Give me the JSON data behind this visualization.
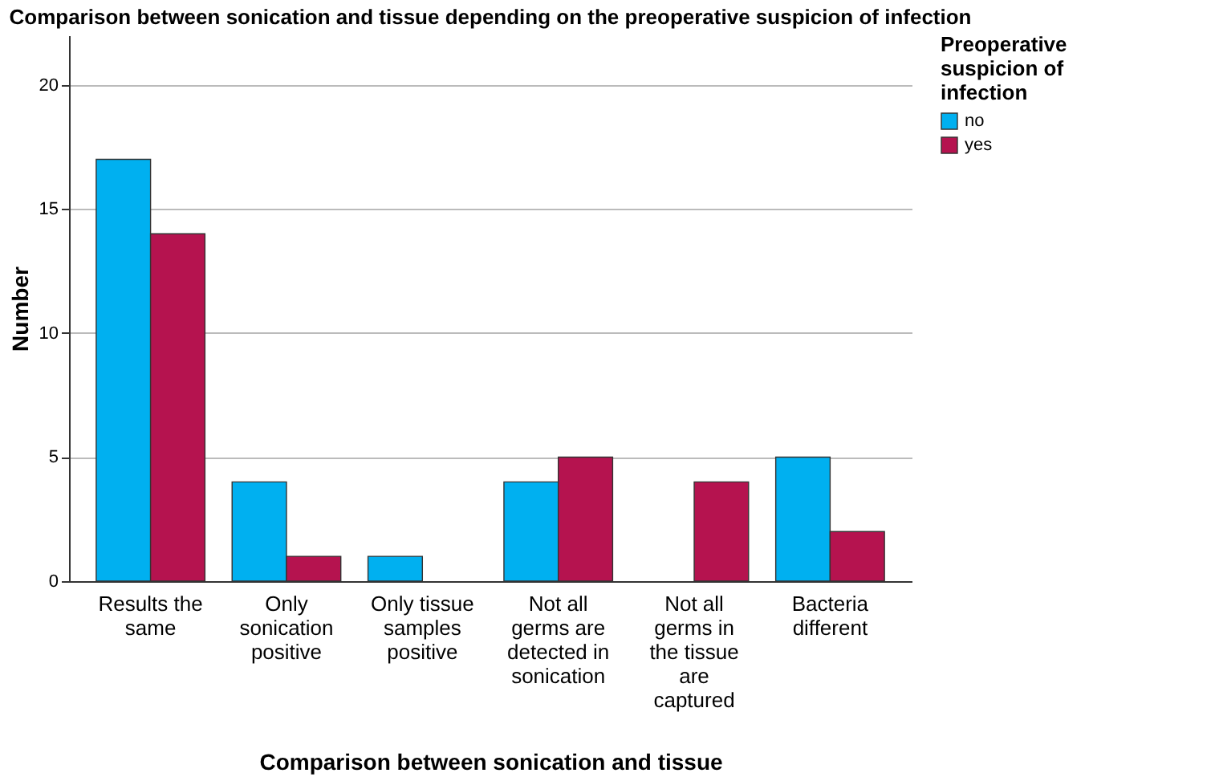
{
  "chart_data": {
    "type": "bar",
    "title": "Comparison between sonication and tissue depending on the preoperative suspicion of infection",
    "xlabel": "Comparison between sonication and tissue",
    "ylabel": "Number",
    "legend_title": "Preoperative suspicion of infection",
    "categories": [
      "Results the same",
      "Only sonication positive",
      "Only tissue samples positive",
      "Not all germs are detected in sonication",
      "Not all germs in the tissue are captured",
      "Bacteria different"
    ],
    "series": [
      {
        "name": "no",
        "color": "#00b0f0",
        "values": [
          17,
          4,
          1,
          4,
          null,
          5
        ]
      },
      {
        "name": "yes",
        "color": "#b5134f",
        "values": [
          14,
          1,
          null,
          5,
          4,
          2
        ]
      }
    ],
    "ylim": [
      0,
      22
    ],
    "yticks": [
      0,
      5,
      10,
      15,
      20
    ],
    "grid": "y",
    "legend": "top right"
  }
}
